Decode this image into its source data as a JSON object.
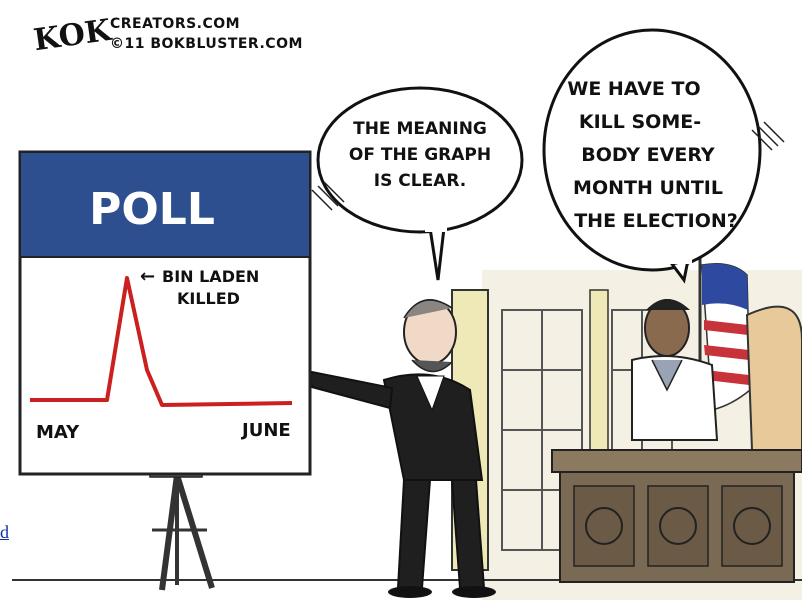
{
  "credit": {
    "signature": "KOK",
    "line1": "CREATORS.COM",
    "line2": "©11 BOKBLUSTER.COM"
  },
  "poll_board": {
    "title": "POLL",
    "annotation": "← BIN LADEN KILLED",
    "annotation_line1": "BIN LADEN",
    "annotation_line2": "KILLED",
    "start_label": "MAY",
    "end_label": "JUNE"
  },
  "speech": {
    "left": [
      "THE MEANING",
      "OF THE GRAPH",
      "IS CLEAR."
    ],
    "right": [
      "WE HAVE TO",
      "KILL SOME-",
      "BODY EVERY",
      "MONTH UNTIL",
      "THE ELECTION?"
    ]
  },
  "edge_link": "d",
  "colors": {
    "poll_header": "#2d4f8f",
    "graph_line": "#cc1f1f",
    "bubble_fill": "#ffffff",
    "ink": "#111111",
    "wall": "#f4f1e4",
    "column": "#efe9b8",
    "desk": "#7a6a54",
    "flag_red": "#c8323a",
    "flag_blue": "#2e49a0"
  }
}
